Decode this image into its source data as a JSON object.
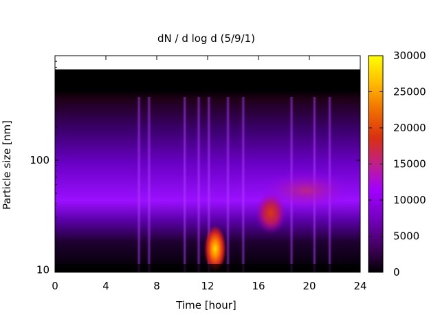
{
  "chart_data": {
    "type": "heatmap",
    "title": "dN / d log d (5/9/1)",
    "xlabel": "Time [hour]",
    "ylabel": "Particle size [nm]",
    "xlim": [
      0,
      24
    ],
    "ylim": [
      9.5,
      900
    ],
    "y_scale": "log",
    "x_ticks": [
      "0",
      "4",
      "8",
      "12",
      "16",
      "20",
      "24"
    ],
    "y_ticks": [
      "10",
      "100"
    ],
    "colorbar": {
      "min": 0,
      "max": 30000,
      "ticks": [
        "0",
        "5000",
        "10000",
        "15000",
        "20000",
        "25000",
        "30000"
      ],
      "palette": "gnuplot-heat (black-purple-red-orange-yellow)"
    },
    "features": [
      {
        "description": "background mode",
        "time_range": [
          0,
          24
        ],
        "size_nm": 45,
        "value": 9000
      },
      {
        "description": "nucleation burst",
        "time_hour": 12.6,
        "size_nm": 14,
        "value": 24000
      },
      {
        "description": "growth event",
        "time_hour": 17.0,
        "size_nm": 33,
        "value": 17000
      }
    ]
  }
}
